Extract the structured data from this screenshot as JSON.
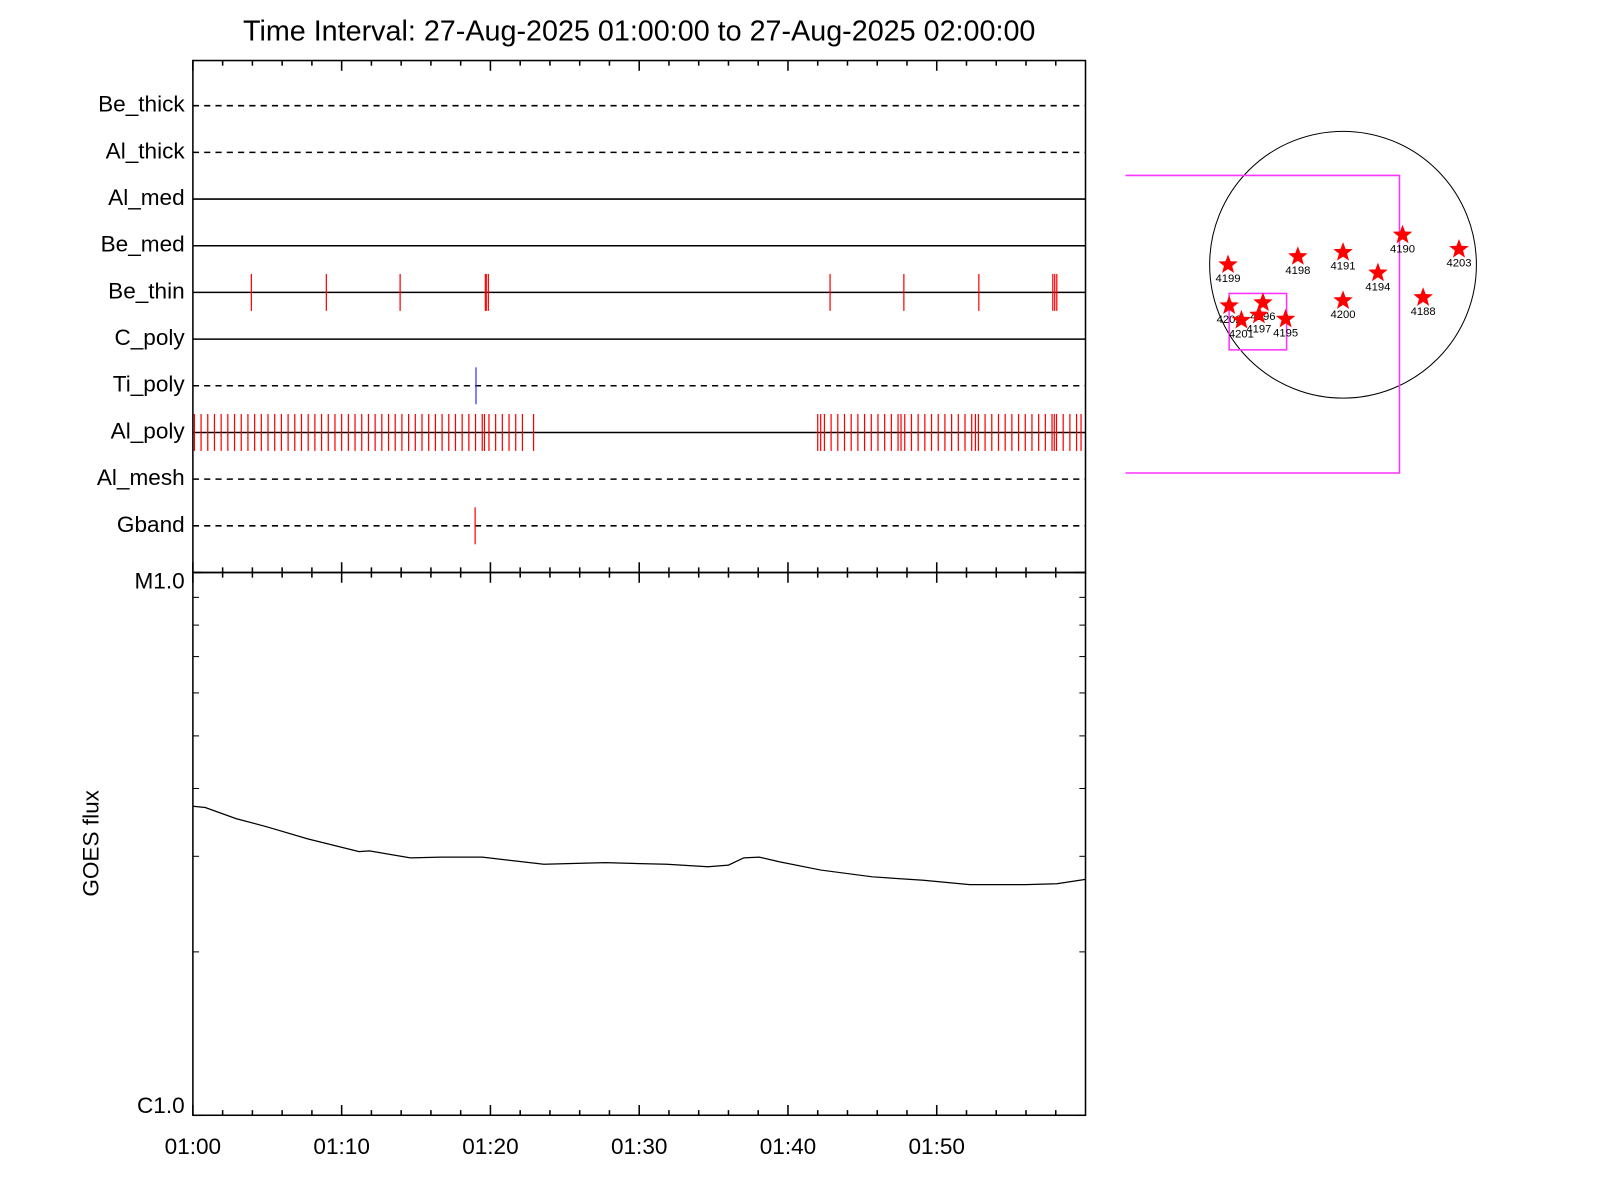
{
  "chart_data": [
    {
      "type": "event-timeline",
      "title": "Time Interval: 27-Aug-2025 01:00:00 to 27-Aug-2025 02:00:00",
      "xlim": [
        0,
        60
      ],
      "rows": [
        {
          "name": "Be_thick",
          "style": "dashed",
          "color": "#ff0000",
          "events": []
        },
        {
          "name": "Al_thick",
          "style": "dashed",
          "color": "#ff0000",
          "events": []
        },
        {
          "name": "Al_med",
          "style": "solid",
          "color": "#ff0000",
          "events": []
        },
        {
          "name": "Be_med",
          "style": "solid",
          "color": "#ff0000",
          "events": []
        },
        {
          "name": "Be_thin",
          "style": "solid",
          "color": "#ff0000",
          "events": [
            3.93,
            8.97,
            13.93,
            19.66,
            19.72,
            19.86,
            42.83,
            47.79,
            52.83,
            57.8,
            57.93,
            58.07
          ]
        },
        {
          "name": "C_poly",
          "style": "solid",
          "color": "#ff0000",
          "events": []
        },
        {
          "name": "Ti_poly",
          "style": "dashed",
          "color": "#3333ff",
          "events": [
            19.03
          ]
        },
        {
          "name": "Al_poly",
          "style": "solid",
          "color": "#ff0000",
          "events": [
            0.1,
            0.55,
            1.0,
            1.45,
            1.9,
            2.35,
            2.8,
            3.25,
            3.7,
            4.15,
            4.6,
            5.05,
            5.5,
            5.95,
            6.4,
            6.85,
            7.3,
            7.75,
            8.2,
            8.65,
            9.1,
            9.55,
            10.0,
            10.45,
            10.9,
            11.35,
            11.8,
            12.25,
            12.7,
            13.15,
            13.6,
            14.05,
            14.5,
            14.95,
            15.4,
            15.85,
            16.3,
            16.75,
            17.2,
            17.65,
            18.1,
            18.55,
            19.0,
            19.45,
            19.6,
            19.9,
            20.35,
            20.8,
            21.25,
            21.7,
            22.15,
            22.9,
            42.0,
            42.2,
            42.45,
            42.9,
            43.35,
            43.8,
            44.25,
            44.7,
            45.15,
            45.6,
            46.05,
            46.5,
            46.95,
            47.4,
            47.6,
            47.85,
            48.3,
            48.75,
            49.2,
            49.65,
            50.1,
            50.55,
            51.0,
            51.45,
            51.9,
            52.35,
            52.6,
            52.8,
            53.25,
            53.7,
            54.15,
            54.6,
            55.05,
            55.5,
            55.95,
            56.4,
            56.85,
            57.3,
            57.75,
            57.9,
            58.05,
            58.5,
            58.95,
            59.4,
            59.7
          ]
        },
        {
          "name": "Al_mesh",
          "style": "dashed",
          "color": "#ff0000",
          "events": []
        },
        {
          "name": "Gband",
          "style": "dashed",
          "color": "#ff0000",
          "events": [
            18.97
          ]
        }
      ]
    },
    {
      "type": "line",
      "ylabel": "GOES flux",
      "color": "#000000",
      "log_y": true,
      "xlim": [
        0,
        60
      ],
      "xticks": [
        {
          "value": 0,
          "label": "01:00"
        },
        {
          "value": 10,
          "label": "01:10"
        },
        {
          "value": 20,
          "label": "01:20"
        },
        {
          "value": 30,
          "label": "01:30"
        },
        {
          "value": 40,
          "label": "01:40"
        },
        {
          "value": 50,
          "label": "01:50"
        }
      ],
      "xminor": [
        2,
        4,
        6,
        8,
        12,
        14,
        16,
        18,
        22,
        24,
        26,
        28,
        32,
        34,
        36,
        38,
        42,
        44,
        46,
        48,
        52,
        54,
        56,
        58
      ],
      "ylim": [
        1e-06,
        1e-05
      ],
      "yticks": [
        {
          "value": 1e-06,
          "label": "C1.0"
        },
        {
          "value": 1e-05,
          "label": "M1.0"
        }
      ],
      "yminor": [
        2e-06,
        3e-06,
        4e-06,
        5e-06,
        6e-06,
        7e-06,
        8e-06,
        9e-06
      ],
      "x": [
        0,
        0.83,
        2.9,
        4.97,
        7.72,
        11.17,
        11.86,
        14.62,
        16.69,
        19.45,
        23.59,
        27.72,
        31.86,
        34.62,
        36.0,
        37.03,
        38.07,
        39.45,
        42.21,
        45.66,
        49.1,
        52.21,
        56.0,
        58.07,
        60.0
      ],
      "values": [
        3.71e-06,
        3.69e-06,
        3.52e-06,
        3.4e-06,
        3.23e-06,
        3.06e-06,
        3.07e-06,
        2.98e-06,
        2.99e-06,
        2.99e-06,
        2.9e-06,
        2.92e-06,
        2.9e-06,
        2.87e-06,
        2.89e-06,
        2.98e-06,
        2.99e-06,
        2.93e-06,
        2.83e-06,
        2.75e-06,
        2.71e-06,
        2.66e-06,
        2.66e-06,
        2.67e-06,
        2.72e-06
      ]
    },
    {
      "type": "scatter",
      "color": "#ff0000",
      "regions": [
        {
          "name": "4199",
          "x": -827,
          "y": 0
        },
        {
          "name": "4198",
          "x": -325,
          "y": 59
        },
        {
          "name": "4191",
          "x": 0,
          "y": 89
        },
        {
          "name": "4190",
          "x": 428,
          "y": 214
        },
        {
          "name": "4203",
          "x": 834,
          "y": 111
        },
        {
          "name": "4194",
          "x": 251,
          "y": -59
        },
        {
          "name": "4200",
          "x": 0,
          "y": -258
        },
        {
          "name": "4188",
          "x": 576,
          "y": -236
        },
        {
          "name": "4202",
          "x": -819,
          "y": -295
        },
        {
          "name": "4201",
          "x": -731,
          "y": -399
        },
        {
          "name": "4196",
          "x": -576,
          "y": -273
        },
        {
          "name": "4197",
          "x": -605,
          "y": -362
        },
        {
          "name": "4195",
          "x": -413,
          "y": -391
        }
      ]
    }
  ]
}
